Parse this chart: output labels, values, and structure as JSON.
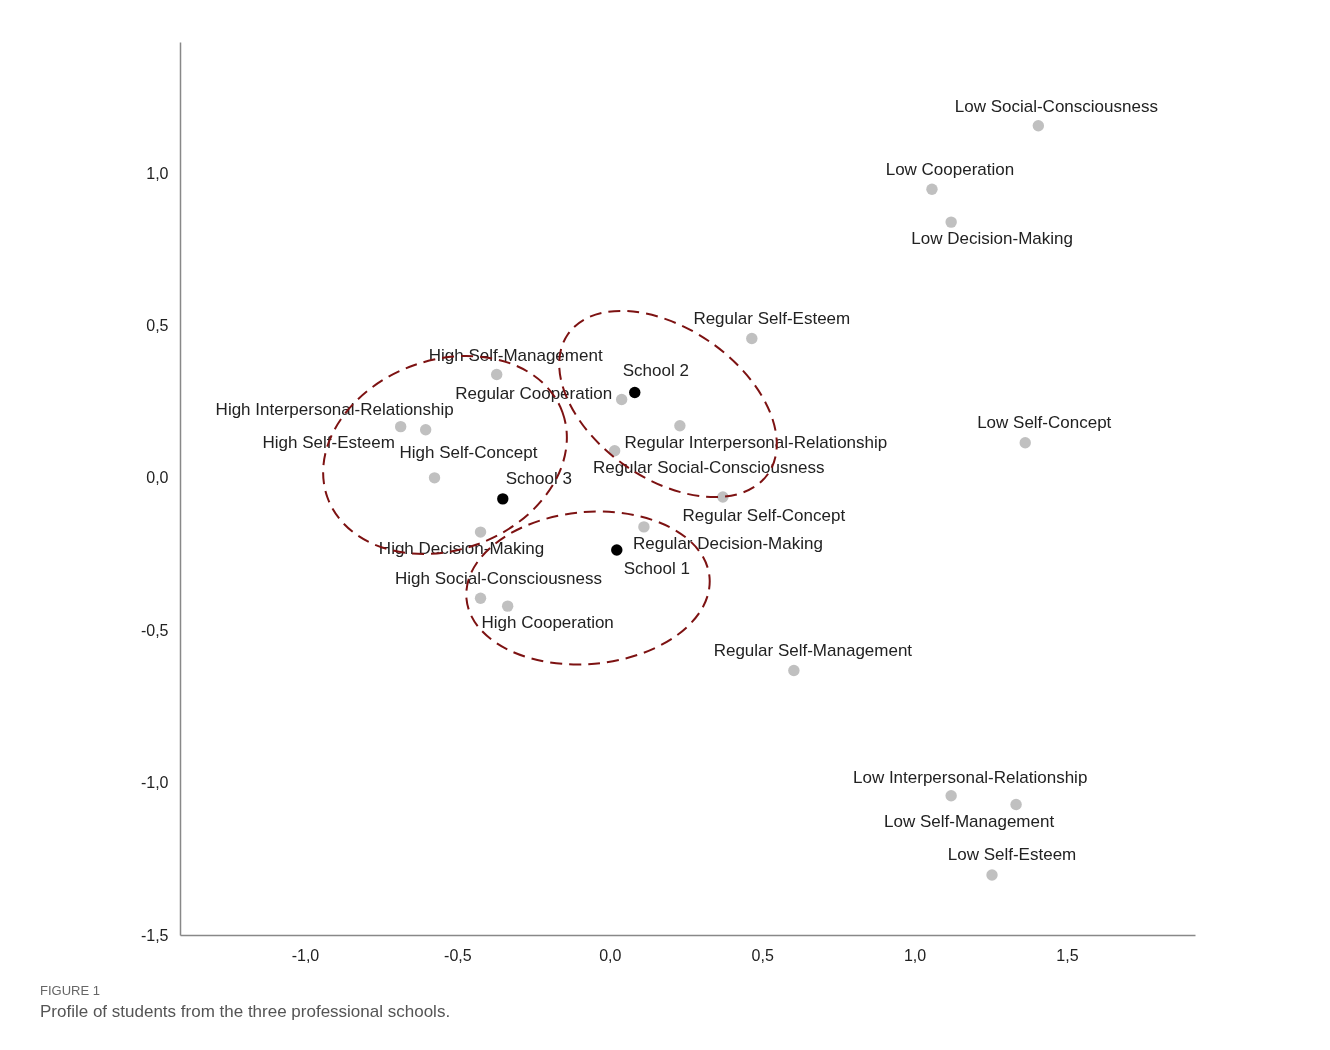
{
  "chart_data": {
    "type": "scatter",
    "marker": "circle",
    "xlim": [
      -1.41,
      1.92
    ],
    "ylim": [
      -1.5,
      1.43
    ],
    "xticks": [
      {
        "value": -1,
        "label": "-1,0"
      },
      {
        "value": -0.5,
        "label": "-0,5"
      },
      {
        "value": 0,
        "label": "0,0"
      },
      {
        "value": 0.5,
        "label": "0,5"
      },
      {
        "value": 1,
        "label": "1,0"
      },
      {
        "value": 1.5,
        "label": "1,5"
      }
    ],
    "yticks": [
      {
        "value": -1.5,
        "label": "-1,5"
      },
      {
        "value": -1,
        "label": "-1,0"
      },
      {
        "value": -0.5,
        "label": "-0,5"
      },
      {
        "value": 0,
        "label": "0,0"
      },
      {
        "value": 0.5,
        "label": "0,5"
      },
      {
        "value": 1,
        "label": "1,0"
      }
    ],
    "series": [
      {
        "color": "#c0c0c0",
        "x": [
          1.406,
          1.057,
          1.12,
          0.466,
          -0.371,
          0.039,
          -0.686,
          -0.604,
          0.23,
          0.016,
          1.363,
          -0.575,
          0.371,
          0.112,
          -0.424,
          -0.424,
          -0.335,
          0.604,
          1.12,
          1.333,
          1.254
        ],
        "values": [
          1.155,
          0.947,
          0.839,
          0.457,
          0.339,
          0.257,
          0.168,
          0.158,
          0.171,
          0.089,
          0.115,
          0.0,
          -0.063,
          -0.161,
          -0.178,
          -0.395,
          -0.421,
          -0.632,
          -1.043,
          -1.072,
          -1.303
        ],
        "value_labels": [
          "Low Social-Consciousness",
          "Low Cooperation",
          "Low Decision-Making",
          "Regular Self-Esteem",
          "High Self-Management",
          "Regular Cooperation",
          "High Interpersonal-Relationship",
          "High Self-Esteem",
          "Regular Interpersonal-Relationship",
          "Regular Social-Consciousness",
          "Low Self-Concept",
          "High Self-Concept",
          "Regular Self-Concept",
          "Regular Decision-Making",
          "High Decision-Making",
          "High Social-Consciousness",
          "High Cooperation",
          "Regular Self-Management",
          "Low Interpersonal-Relationship",
          "Low Self-Management",
          "Low Self-Esteem"
        ]
      },
      {
        "color": "#000000",
        "x": [
          0.082,
          -0.351,
          0.023
        ],
        "values": [
          0.28,
          -0.069,
          -0.237
        ],
        "value_labels": [
          "School  2",
          "School  3",
          "School 1"
        ]
      }
    ],
    "annotations": [
      "FIGURE 1",
      "Profile of students from the three professional schools."
    ]
  }
}
